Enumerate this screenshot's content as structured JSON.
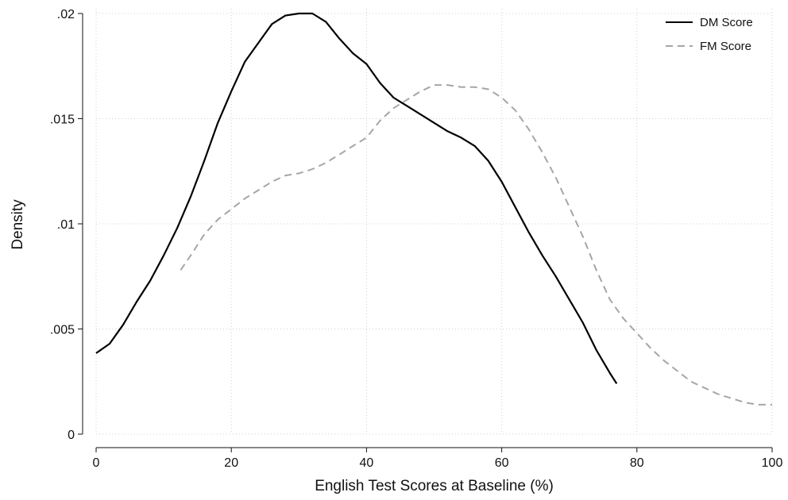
{
  "chart_data": {
    "type": "line",
    "title": "",
    "xlabel": "English Test Scores at Baseline (%)",
    "ylabel": "Density",
    "xlim": [
      0,
      100
    ],
    "ylim": [
      0,
      0.02
    ],
    "x_ticks": [
      0,
      20,
      40,
      60,
      80,
      100
    ],
    "x_tick_labels": [
      "0",
      "20",
      "40",
      "60",
      "80",
      "100"
    ],
    "y_ticks": [
      0,
      0.005,
      0.01,
      0.015,
      0.02
    ],
    "y_tick_labels": [
      "0",
      ".005",
      ".01",
      ".015",
      ".02"
    ],
    "grid": true,
    "legend_position": "top-right",
    "series": [
      {
        "name": "DM Score",
        "color": "#000000",
        "dash": "solid",
        "points": [
          [
            0,
            0.00385
          ],
          [
            2,
            0.0043
          ],
          [
            4,
            0.0052
          ],
          [
            6,
            0.0063
          ],
          [
            8,
            0.0073
          ],
          [
            10,
            0.0085
          ],
          [
            12,
            0.0098
          ],
          [
            14,
            0.0113
          ],
          [
            16,
            0.013
          ],
          [
            18,
            0.0148
          ],
          [
            20,
            0.0163
          ],
          [
            22,
            0.0177
          ],
          [
            24,
            0.0186
          ],
          [
            26,
            0.0195
          ],
          [
            28,
            0.0199
          ],
          [
            30,
            0.02
          ],
          [
            32,
            0.02
          ],
          [
            34,
            0.0196
          ],
          [
            36,
            0.0188
          ],
          [
            38,
            0.0181
          ],
          [
            40,
            0.0176
          ],
          [
            42,
            0.0167
          ],
          [
            44,
            0.016
          ],
          [
            46,
            0.0156
          ],
          [
            48,
            0.0152
          ],
          [
            50,
            0.0148
          ],
          [
            52,
            0.0144
          ],
          [
            54,
            0.0141
          ],
          [
            56,
            0.0137
          ],
          [
            58,
            0.013
          ],
          [
            60,
            0.012
          ],
          [
            62,
            0.0108
          ],
          [
            64,
            0.0096
          ],
          [
            66,
            0.0085
          ],
          [
            68,
            0.0075
          ],
          [
            70,
            0.0064
          ],
          [
            72,
            0.0053
          ],
          [
            74,
            0.004
          ],
          [
            76,
            0.0029
          ],
          [
            77,
            0.0024
          ]
        ]
      },
      {
        "name": "FM Score",
        "color": "#a6a6a6",
        "dash": "dashed",
        "points": [
          [
            12.5,
            0.0078
          ],
          [
            14,
            0.0085
          ],
          [
            16,
            0.0095
          ],
          [
            18,
            0.0102
          ],
          [
            20,
            0.0107
          ],
          [
            22,
            0.0112
          ],
          [
            24,
            0.0116
          ],
          [
            26,
            0.012
          ],
          [
            28,
            0.0123
          ],
          [
            30,
            0.0124
          ],
          [
            32,
            0.0126
          ],
          [
            34,
            0.0129
          ],
          [
            36,
            0.0133
          ],
          [
            38,
            0.0137
          ],
          [
            40,
            0.0141
          ],
          [
            42,
            0.0149
          ],
          [
            44,
            0.0155
          ],
          [
            46,
            0.0159
          ],
          [
            48,
            0.0163
          ],
          [
            50,
            0.0166
          ],
          [
            52,
            0.0166
          ],
          [
            54,
            0.0165
          ],
          [
            56,
            0.0165
          ],
          [
            58,
            0.0164
          ],
          [
            60,
            0.016
          ],
          [
            62,
            0.0154
          ],
          [
            64,
            0.0145
          ],
          [
            66,
            0.0134
          ],
          [
            68,
            0.0122
          ],
          [
            70,
            0.0108
          ],
          [
            72,
            0.0094
          ],
          [
            74,
            0.0078
          ],
          [
            76,
            0.0064
          ],
          [
            78,
            0.0055
          ],
          [
            80,
            0.0048
          ],
          [
            82,
            0.0041
          ],
          [
            84,
            0.0035
          ],
          [
            86,
            0.003
          ],
          [
            88,
            0.0025
          ],
          [
            90,
            0.0022
          ],
          [
            92,
            0.0019
          ],
          [
            94,
            0.0017
          ],
          [
            96,
            0.0015
          ],
          [
            98,
            0.0014
          ],
          [
            100,
            0.0014
          ]
        ]
      }
    ]
  }
}
